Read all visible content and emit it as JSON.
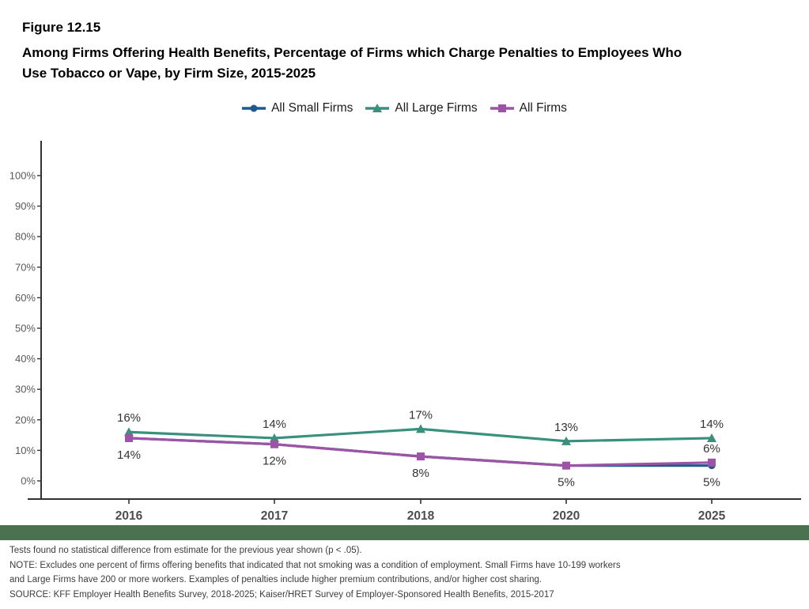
{
  "figure": {
    "number": "Figure 12.15",
    "title": "Among Firms Offering Health Benefits, Percentage of Firms which Charge Penalties to Employees Who Use Tobacco or Vape, by Firm Size, 2015-2025"
  },
  "colors": {
    "small_firms": "#1f5a8c",
    "large_firms": "#38907d",
    "all_firms": "#9d53a6",
    "axis": "#333333",
    "year_label": "#4d4d4d",
    "ytick_label": "#595959",
    "data_label": "#333333",
    "divider_band": "#4a7150"
  },
  "chart_data": {
    "type": "line",
    "title": "Among Firms Offering Health Benefits, Percentage of Firms which Charge Penalties to Employees Who Use Tobacco or Vape, by Firm Size, 2015-2025",
    "xlabel": "",
    "ylabel": "",
    "categories": [
      "2016",
      "2017",
      "2018",
      "2020",
      "2025"
    ],
    "ylim": [
      0,
      100
    ],
    "y_ticks": [
      "0%",
      "10%",
      "20%",
      "30%",
      "40%",
      "50%",
      "60%",
      "70%",
      "80%",
      "90%",
      "100%"
    ],
    "grid": false,
    "legend_position": "top",
    "series": [
      {
        "name": "All Small Firms",
        "marker": "circle",
        "color": "#1f5a8c",
        "values": [
          14,
          12,
          8,
          5,
          5
        ],
        "point_labels": [
          "",
          "",
          "",
          "",
          "5%"
        ],
        "label_positions": [
          "none",
          "none",
          "none",
          "none",
          "below"
        ]
      },
      {
        "name": "All Large Firms",
        "marker": "triangle",
        "color": "#38907d",
        "values": [
          16,
          14,
          17,
          13,
          14
        ],
        "point_labels": [
          "16%",
          "14%",
          "17%",
          "13%",
          "14%"
        ],
        "label_positions": [
          "above",
          "above",
          "above",
          "above",
          "above"
        ]
      },
      {
        "name": "All Firms",
        "marker": "square",
        "color": "#9d53a6",
        "values": [
          14,
          12,
          8,
          5,
          6
        ],
        "point_labels": [
          "14%",
          "12%",
          "8%",
          "5%",
          "6%"
        ],
        "label_positions": [
          "below",
          "below",
          "below",
          "below",
          "above"
        ]
      }
    ]
  },
  "footnotes": [
    "Tests found no statistical difference from estimate for the previous year shown (p < .05).",
    "NOTE: Excludes one percent of firms offering benefits that indicated that not smoking was a condition of employment. Small Firms have 10-199 workers",
    "and Large Firms have 200 or more workers.  Examples of penalties include higher premium contributions, and/or higher cost sharing.",
    "SOURCE: KFF Employer Health Benefits Survey, 2018-2025; Kaiser/HRET Survey of Employer-Sponsored Health Benefits, 2015-2017"
  ]
}
